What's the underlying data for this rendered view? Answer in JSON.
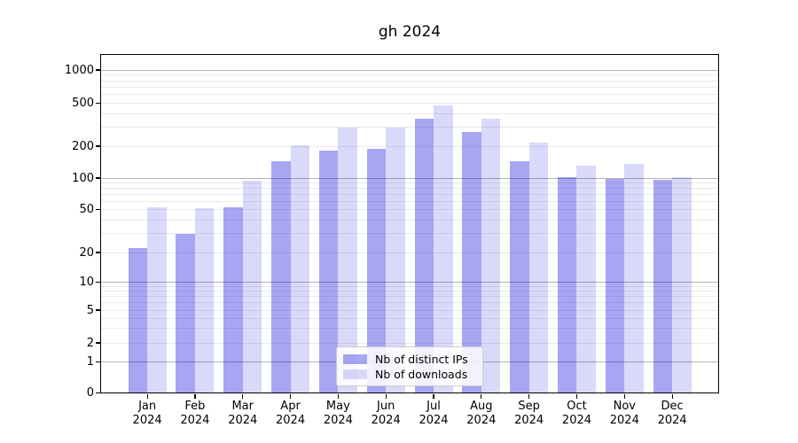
{
  "chart_data": {
    "type": "bar",
    "title": "gh 2024",
    "scale": "symlog",
    "grid": true,
    "legend_position": "lower center",
    "categories": [
      "Jan",
      "Feb",
      "Mar",
      "Apr",
      "May",
      "Jun",
      "Jul",
      "Aug",
      "Sep",
      "Oct",
      "Nov",
      "Dec"
    ],
    "year": "2024",
    "y_ticks": [
      0,
      1,
      2,
      5,
      10,
      20,
      50,
      100,
      200,
      500,
      1000
    ],
    "ylim": [
      0,
      1400
    ],
    "series": [
      {
        "name": "Nb of distinct IPs",
        "color": "rgba(0,0,218,0.35)",
        "values": [
          22,
          30,
          53,
          145,
          182,
          190,
          360,
          270,
          145,
          102,
          98,
          96
        ]
      },
      {
        "name": "Nb of downloads",
        "color": "rgba(0,0,218,0.15)",
        "values": [
          53,
          51,
          95,
          205,
          300,
          295,
          480,
          360,
          215,
          130,
          135,
          101
        ]
      }
    ]
  }
}
